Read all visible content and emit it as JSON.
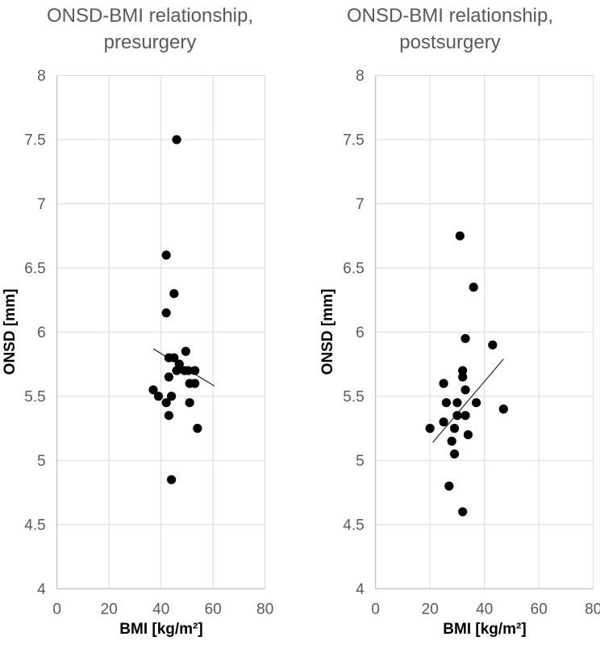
{
  "accent_colors": {
    "point": "#000000",
    "trendline": "#262626",
    "gridline": "#d9d9d9",
    "axis_line": "#bfbfbf",
    "title_text": "#595959",
    "tick_text": "#595959",
    "axis_label_text": "#000000",
    "background": "#ffffff"
  },
  "figure": {
    "charts": [
      {
        "title_line1": "ONSD-BMI relationship,",
        "title_line2": "presurgery",
        "xlabel": "BMI [kg/m²]",
        "ylabel": "ONSD [mm]"
      },
      {
        "title_line1": "ONSD-BMI relationship,",
        "title_line2": "postsurgery",
        "xlabel": "BMI [kg/m²]",
        "ylabel": "ONSD [mm]"
      }
    ]
  },
  "chart_data": [
    {
      "type": "scatter",
      "title": "ONSD-BMI relationship, presurgery",
      "xlabel": "BMI [kg/m²]",
      "ylabel": "ONSD [mm]",
      "xlim": [
        0,
        80
      ],
      "ylim": [
        4,
        8
      ],
      "xticks": [
        0,
        20,
        40,
        60,
        80
      ],
      "yticks": [
        4,
        4.5,
        5,
        5.5,
        6,
        6.5,
        7,
        7.5,
        8
      ],
      "grid": true,
      "legend": false,
      "marker": "filled-black-circle",
      "points": [
        [
          46,
          7.5
        ],
        [
          42,
          6.6
        ],
        [
          45,
          6.3
        ],
        [
          42,
          6.15
        ],
        [
          49.5,
          5.85
        ],
        [
          43,
          5.8
        ],
        [
          45,
          5.8
        ],
        [
          47,
          5.75
        ],
        [
          46,
          5.7
        ],
        [
          49,
          5.7
        ],
        [
          50.5,
          5.7
        ],
        [
          53,
          5.7
        ],
        [
          43,
          5.65
        ],
        [
          51,
          5.6
        ],
        [
          53,
          5.6
        ],
        [
          37,
          5.55
        ],
        [
          39,
          5.5
        ],
        [
          44,
          5.5
        ],
        [
          42,
          5.45
        ],
        [
          51,
          5.45
        ],
        [
          43,
          5.35
        ],
        [
          54,
          5.25
        ],
        [
          44,
          4.85
        ]
      ],
      "trendline": {
        "x1": 37,
        "y1": 5.87,
        "x2": 60.5,
        "y2": 5.58,
        "slope_direction": "negative"
      }
    },
    {
      "type": "scatter",
      "title": "ONSD-BMI relationship, postsurgery",
      "xlabel": "BMI [kg/m²]",
      "ylabel": "ONSD [mm]",
      "xlim": [
        0,
        80
      ],
      "ylim": [
        4,
        8
      ],
      "xticks": [
        0,
        20,
        40,
        60,
        80
      ],
      "yticks": [
        4,
        4.5,
        5,
        5.5,
        6,
        6.5,
        7,
        7.5,
        8
      ],
      "grid": true,
      "legend": false,
      "marker": "filled-black-circle",
      "points": [
        [
          31,
          6.75
        ],
        [
          36,
          6.35
        ],
        [
          33,
          5.95
        ],
        [
          43,
          5.9
        ],
        [
          32,
          5.7
        ],
        [
          32,
          5.65
        ],
        [
          25,
          5.6
        ],
        [
          33,
          5.55
        ],
        [
          26,
          5.45
        ],
        [
          30,
          5.45
        ],
        [
          37,
          5.45
        ],
        [
          47,
          5.4
        ],
        [
          30,
          5.35
        ],
        [
          33,
          5.35
        ],
        [
          25,
          5.3
        ],
        [
          20,
          5.25
        ],
        [
          29,
          5.25
        ],
        [
          34,
          5.2
        ],
        [
          28,
          5.15
        ],
        [
          29,
          5.05
        ],
        [
          27,
          4.8
        ],
        [
          32,
          4.6
        ]
      ],
      "trendline": {
        "x1": 21,
        "y1": 5.14,
        "x2": 47,
        "y2": 5.79,
        "slope_direction": "positive"
      }
    }
  ]
}
